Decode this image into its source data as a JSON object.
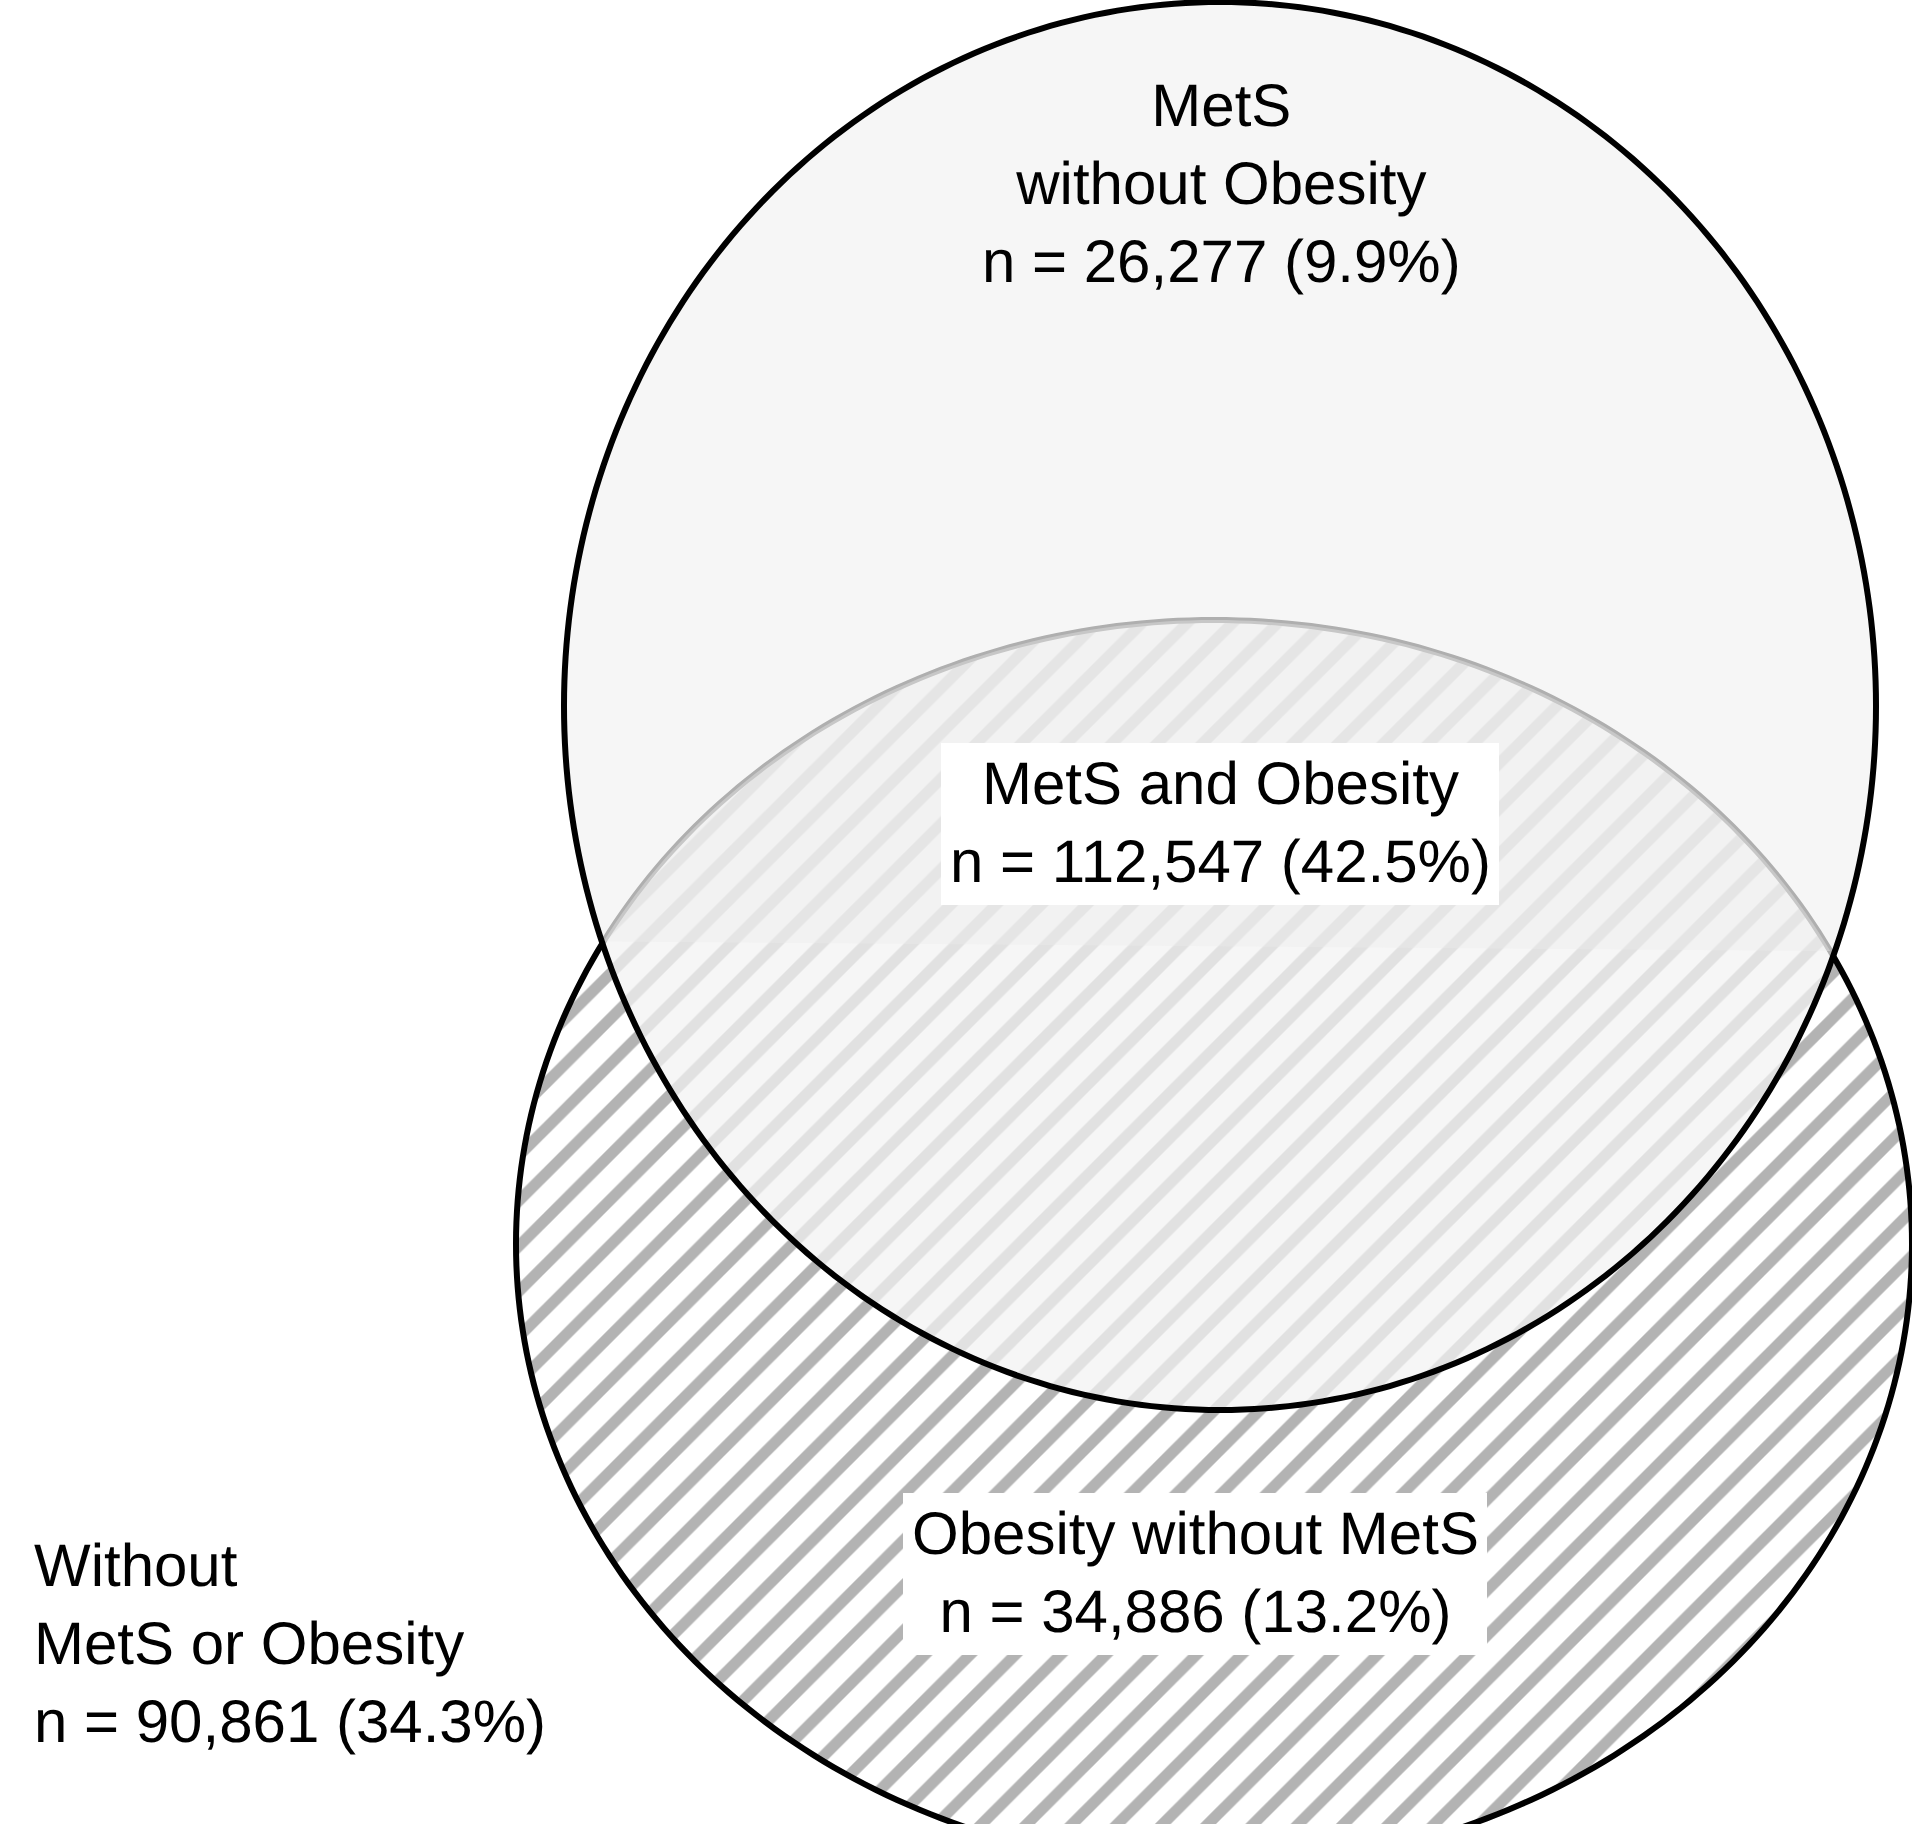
{
  "chart_data": {
    "type": "other",
    "categories": [
      "MetS\nwithout Obesity",
      "MetS and Obesity",
      "Obesity without MetS",
      "Without\nMetS or Obesity"
    ],
    "values": [
      26277,
      112547,
      34886,
      90861
    ],
    "value_labels": [
      "n = 26,277 (9.9%)",
      "n = 112,547 (42.5%)",
      "n = 34,886 (13.2%)",
      "n = 90,861 (34.3%)"
    ]
  }
}
